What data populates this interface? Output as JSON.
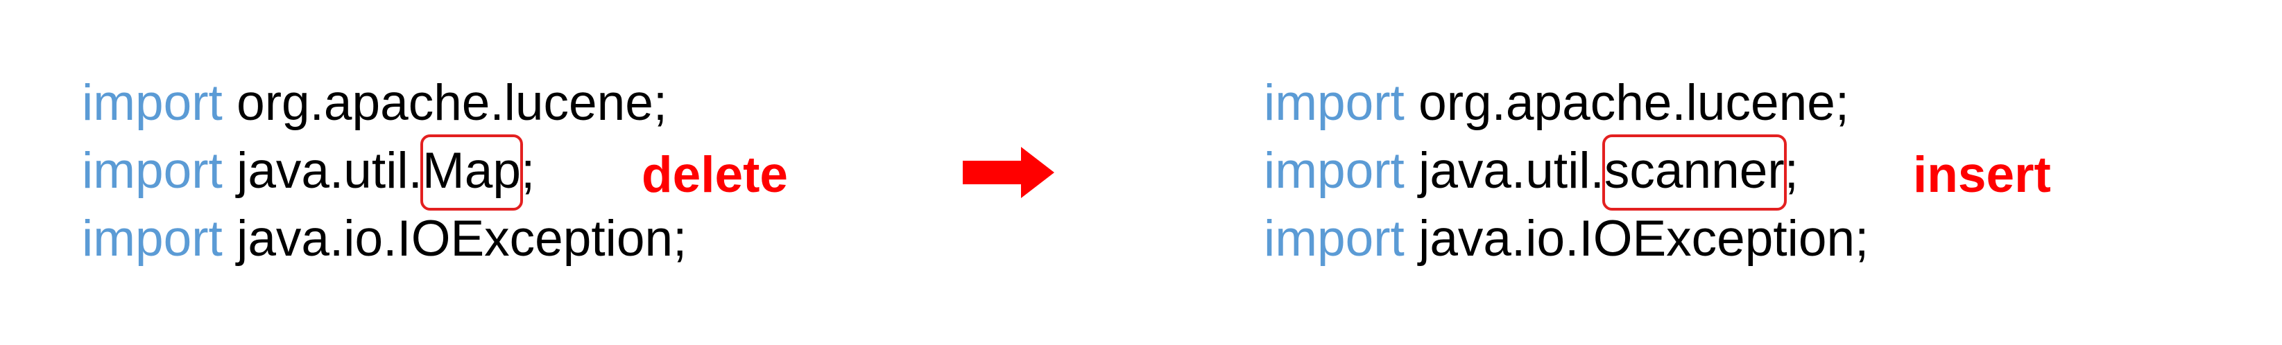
{
  "keyword": "import",
  "colors": {
    "keyword": "#5b9bd5",
    "code": "#000000",
    "highlight_box": "#e32020",
    "operation_label": "#ff0000",
    "arrow": "#ff0000"
  },
  "before": {
    "line1": {
      "rest": " org.apache.lucene;"
    },
    "line2": {
      "prefix": " java.util.",
      "changed_token": "Map",
      "suffix": ";"
    },
    "line3": {
      "rest": " java.io.IOException;"
    },
    "operation": "delete"
  },
  "after": {
    "line1": {
      "rest": " org.apache.lucene;"
    },
    "line2": {
      "prefix": " java.util.",
      "changed_token": "scanner",
      "suffix": ";"
    },
    "line3": {
      "rest": " java.io.IOException;"
    },
    "operation": "insert"
  },
  "arrow_icon": "right-arrow-icon"
}
